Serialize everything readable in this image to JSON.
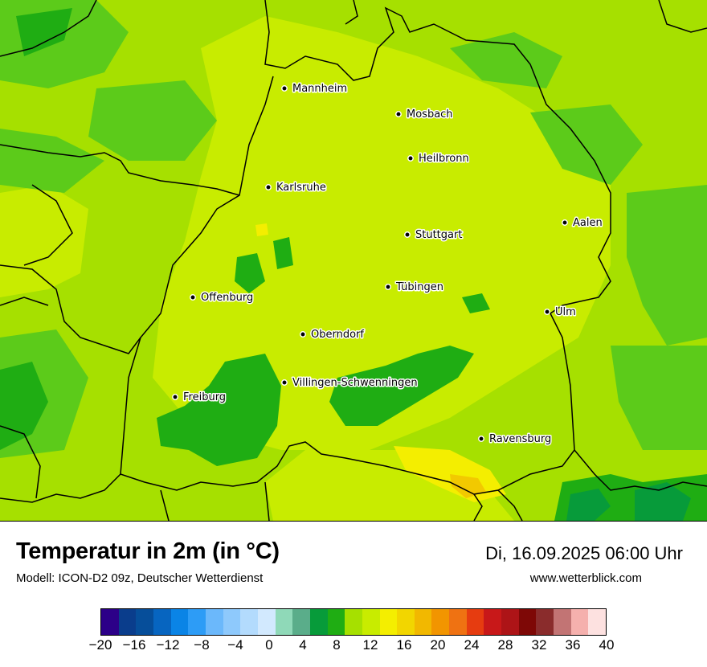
{
  "title": "Temperatur in 2m (in °C)",
  "subtitle": "Modell: ICON-D2 09z, Deutscher Wetterdienst",
  "datetime": "Di, 16.09.2025 06:00 Uhr",
  "website": "www.wetterblick.com",
  "colors": {
    "background_green": "#a6e000",
    "light_green": "#c8ec00",
    "mid_green": "#5ccb1a",
    "dark_green": "#1fad13",
    "deep_green": "#079b3a",
    "yellow": "#f4ee00",
    "gold": "#f2c900"
  },
  "cities": [
    {
      "name": "Mannheim"
    },
    {
      "name": "Mosbach"
    },
    {
      "name": "Heilbronn"
    },
    {
      "name": "Karlsruhe"
    },
    {
      "name": "Aalen"
    },
    {
      "name": "Stuttgart"
    },
    {
      "name": "Tübingen"
    },
    {
      "name": "Offenburg"
    },
    {
      "name": "Ulm"
    },
    {
      "name": "Oberndorf"
    },
    {
      "name": "Villingen-Schwenningen"
    },
    {
      "name": "Freiburg"
    },
    {
      "name": "Ravensburg"
    }
  ],
  "legend": {
    "colors": [
      "#2c0088",
      "#0a3d8c",
      "#064e9a",
      "#0765c0",
      "#0a84e6",
      "#2d9cf6",
      "#6bb8fb",
      "#8ec9fc",
      "#b3dbfd",
      "#d2e9fe",
      "#8fd9b8",
      "#5aad8a",
      "#079b3a",
      "#1fad13",
      "#a6e000",
      "#c8ec00",
      "#f4ee00",
      "#f2d600",
      "#f2b800",
      "#f29500",
      "#ef7212",
      "#e63c10",
      "#c81819",
      "#ad1417",
      "#7e0806",
      "#8a2c2c",
      "#c27474",
      "#f5b0ad",
      "#fde1e0"
    ],
    "ticks": [
      "−20",
      "−16",
      "−12",
      "−8",
      "−4",
      "0",
      "4",
      "8",
      "12",
      "16",
      "20",
      "24",
      "28",
      "32",
      "36",
      "40"
    ]
  }
}
